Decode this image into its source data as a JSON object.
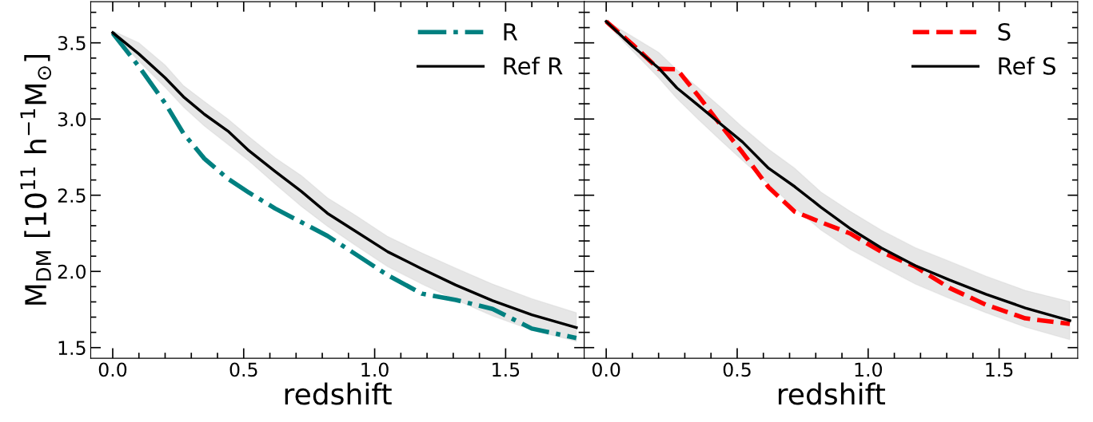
{
  "chart_data": [
    {
      "type": "line",
      "xlabel": "redshift",
      "ylabel": "M$_{DM}$ [10$^{11}$ h$^{−1}$M$_{⊙}$]",
      "x": [
        0,
        0.1,
        0.2,
        0.27,
        0.35,
        0.44,
        0.52,
        0.62,
        0.72,
        0.82,
        0.93,
        1.05,
        1.18,
        1.31,
        1.45,
        1.6,
        1.77
      ],
      "xlim": [
        -0.084,
        1.8
      ],
      "xticks": [
        {
          "value": 0,
          "label": "0.0"
        },
        {
          "value": 0.1,
          "label": null
        },
        {
          "value": 0.2,
          "label": null
        },
        {
          "value": 0.3,
          "label": null
        },
        {
          "value": 0.4,
          "label": null
        },
        {
          "value": 0.5,
          "label": "0.5"
        },
        {
          "value": 0.6,
          "label": null
        },
        {
          "value": 0.7,
          "label": null
        },
        {
          "value": 0.8,
          "label": null
        },
        {
          "value": 0.9,
          "label": null
        },
        {
          "value": 1,
          "label": "1.0"
        },
        {
          "value": 1.1,
          "label": null
        },
        {
          "value": 1.2,
          "label": null
        },
        {
          "value": 1.3,
          "label": null
        },
        {
          "value": 1.4,
          "label": null
        },
        {
          "value": 1.5,
          "label": "1.5"
        },
        {
          "value": 1.6,
          "label": null
        },
        {
          "value": 1.7,
          "label": null
        }
      ],
      "ylim": [
        1.43,
        3.77
      ],
      "yticks": [
        {
          "value": 1.5,
          "label": "1.5"
        },
        {
          "value": 1.6,
          "label": null
        },
        {
          "value": 1.7,
          "label": null
        },
        {
          "value": 1.8,
          "label": null
        },
        {
          "value": 1.9,
          "label": null
        },
        {
          "value": 2,
          "label": "2.0"
        },
        {
          "value": 2.1,
          "label": null
        },
        {
          "value": 2.2,
          "label": null
        },
        {
          "value": 2.3,
          "label": null
        },
        {
          "value": 2.4,
          "label": null
        },
        {
          "value": 2.5,
          "label": "2.5"
        },
        {
          "value": 2.6,
          "label": null
        },
        {
          "value": 2.7,
          "label": null
        },
        {
          "value": 2.8,
          "label": null
        },
        {
          "value": 2.9,
          "label": null
        },
        {
          "value": 3,
          "label": "3.0"
        },
        {
          "value": 3.1,
          "label": null
        },
        {
          "value": 3.2,
          "label": null
        },
        {
          "value": 3.3,
          "label": null
        },
        {
          "value": 3.4,
          "label": null
        },
        {
          "value": 3.5,
          "label": "3.5"
        },
        {
          "value": 3.6,
          "label": null
        },
        {
          "value": 3.7,
          "label": null
        }
      ],
      "legend": "top right",
      "grid": false,
      "series": [
        {
          "name": "R",
          "color": "#008080",
          "line_style": "dashdot",
          "values": [
            3.563,
            3.344,
            3.104,
            2.906,
            2.74,
            2.608,
            2.517,
            2.413,
            2.323,
            2.233,
            2.11,
            1.975,
            1.854,
            1.813,
            1.754,
            1.625,
            1.563
          ]
        },
        {
          "name": "Ref R",
          "color": "#000000",
          "line_style": "solid",
          "values": [
            3.567,
            3.427,
            3.271,
            3.146,
            3.031,
            2.921,
            2.792,
            2.656,
            2.525,
            2.381,
            2.26,
            2.129,
            2.017,
            1.91,
            1.808,
            1.715,
            1.631
          ],
          "upper": [
            3.579,
            3.5,
            3.354,
            3.219,
            3.115,
            3.0,
            2.885,
            2.746,
            2.629,
            2.483,
            2.365,
            2.229,
            2.121,
            2.021,
            1.917,
            1.821,
            1.729
          ],
          "lower": [
            3.558,
            3.379,
            3.208,
            3.079,
            2.954,
            2.833,
            2.725,
            2.573,
            2.427,
            2.296,
            2.167,
            2.031,
            1.917,
            1.813,
            1.708,
            1.615,
            1.542
          ]
        }
      ]
    },
    {
      "type": "line",
      "xlabel": "redshift",
      "x": [
        0,
        0.1,
        0.2,
        0.27,
        0.35,
        0.44,
        0.52,
        0.62,
        0.72,
        0.82,
        0.93,
        1.05,
        1.18,
        1.31,
        1.45,
        1.6,
        1.77
      ],
      "xlim": [
        -0.084,
        1.8
      ],
      "xticks": [
        {
          "value": 0,
          "label": "0.0"
        },
        {
          "value": 0.1,
          "label": null
        },
        {
          "value": 0.2,
          "label": null
        },
        {
          "value": 0.3,
          "label": null
        },
        {
          "value": 0.4,
          "label": null
        },
        {
          "value": 0.5,
          "label": "0.5"
        },
        {
          "value": 0.6,
          "label": null
        },
        {
          "value": 0.7,
          "label": null
        },
        {
          "value": 0.8,
          "label": null
        },
        {
          "value": 0.9,
          "label": null
        },
        {
          "value": 1,
          "label": "1.0"
        },
        {
          "value": 1.1,
          "label": null
        },
        {
          "value": 1.2,
          "label": null
        },
        {
          "value": 1.3,
          "label": null
        },
        {
          "value": 1.4,
          "label": null
        },
        {
          "value": 1.5,
          "label": "1.5"
        },
        {
          "value": 1.6,
          "label": null
        },
        {
          "value": 1.7,
          "label": null
        }
      ],
      "ylim": [
        1.43,
        3.77
      ],
      "yticks": [
        1.5,
        {
          "value": 1.6,
          "label": null
        },
        {
          "value": 1.7,
          "label": null
        },
        {
          "value": 1.8,
          "label": null
        },
        {
          "value": 1.9,
          "label": null
        },
        2,
        {
          "value": 2.1,
          "label": null
        },
        {
          "value": 2.2,
          "label": null
        },
        {
          "value": 2.3,
          "label": null
        },
        {
          "value": 2.4,
          "label": null
        },
        2.5,
        {
          "value": 2.6,
          "label": null
        },
        {
          "value": 2.7,
          "label": null
        },
        {
          "value": 2.8,
          "label": null
        },
        {
          "value": 2.9,
          "label": null
        },
        3,
        {
          "value": 3.1,
          "label": null
        },
        {
          "value": 3.2,
          "label": null
        },
        {
          "value": 3.3,
          "label": null
        },
        {
          "value": 3.4,
          "label": null
        },
        3.5,
        {
          "value": 3.6,
          "label": null
        },
        {
          "value": 3.7,
          "label": null
        }
      ],
      "tick_labels": "x",
      "legend": "top right",
      "grid": false,
      "series": [
        {
          "name": "S",
          "color": "#ff0000",
          "line_style": "dashed",
          "values": [
            3.64,
            3.49,
            3.329,
            3.327,
            3.156,
            2.954,
            2.781,
            2.552,
            2.392,
            2.323,
            2.25,
            2.129,
            2.031,
            1.892,
            1.781,
            1.692,
            1.656
          ]
        },
        {
          "name": "Ref S",
          "color": "#000000",
          "line_style": "solid",
          "values": [
            3.64,
            3.479,
            3.335,
            3.204,
            3.092,
            2.963,
            2.85,
            2.677,
            2.556,
            2.421,
            2.283,
            2.154,
            2.038,
            1.944,
            1.85,
            1.76,
            1.677
          ],
          "upper": [
            3.645,
            3.542,
            3.438,
            3.323,
            3.208,
            3.073,
            2.948,
            2.802,
            2.677,
            2.521,
            2.396,
            2.271,
            2.156,
            2.067,
            1.969,
            1.875,
            1.802
          ],
          "lower": [
            3.625,
            3.448,
            3.271,
            3.135,
            3.0,
            2.854,
            2.729,
            2.573,
            2.417,
            2.271,
            2.146,
            2.035,
            1.917,
            1.823,
            1.729,
            1.635,
            1.552
          ]
        }
      ]
    }
  ]
}
